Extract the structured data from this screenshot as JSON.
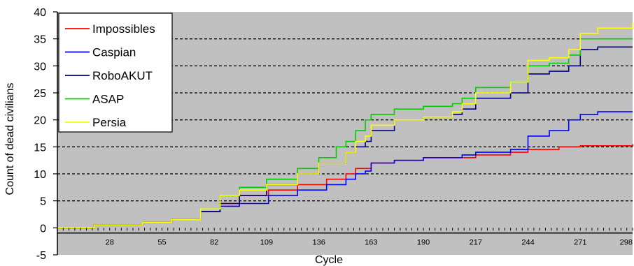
{
  "chart_data": {
    "type": "line",
    "title": "",
    "xlabel": "Cycle",
    "ylabel": "Count of dead civilians",
    "xlim": [
      1,
      298
    ],
    "ylim": [
      -5,
      40
    ],
    "x_ticks": [
      28,
      55,
      82,
      109,
      136,
      163,
      190,
      217,
      244,
      271,
      298
    ],
    "y_ticks": [
      -5,
      0,
      5,
      10,
      15,
      20,
      25,
      30,
      35,
      40
    ],
    "plot_background": "#c0c0c0",
    "grid": "horizontal dashed",
    "legend_position": "top-left",
    "series": [
      {
        "name": "Impossibles",
        "color": "#ff0000",
        "x": [
          1,
          20,
          45,
          60,
          75,
          85,
          95,
          110,
          125,
          140,
          150,
          155,
          160,
          163,
          175,
          190,
          210,
          217,
          235,
          244,
          260,
          271,
          298
        ],
        "y": [
          0,
          0.5,
          1,
          1.5,
          3,
          4.5,
          6,
          7,
          8,
          9,
          10,
          11,
          11,
          12,
          12.5,
          13,
          13,
          13.5,
          14,
          14.5,
          15,
          15.2,
          15.5
        ]
      },
      {
        "name": "Caspian",
        "color": "#0000ff",
        "x": [
          1,
          20,
          45,
          60,
          75,
          85,
          95,
          110,
          125,
          140,
          150,
          155,
          160,
          163,
          175,
          190,
          210,
          217,
          235,
          244,
          255,
          265,
          271,
          280,
          298
        ],
        "y": [
          0,
          0.5,
          1,
          1.5,
          3,
          4,
          4.5,
          6,
          7,
          8,
          9,
          10,
          10.5,
          12,
          12.5,
          13,
          13.5,
          14,
          14.5,
          17,
          18,
          20,
          21,
          21.5,
          21.5
        ]
      },
      {
        "name": "RoboAKUT",
        "color": "#000080",
        "x": [
          1,
          20,
          45,
          60,
          75,
          85,
          95,
          109,
          125,
          136,
          150,
          155,
          160,
          163,
          175,
          190,
          205,
          210,
          217,
          235,
          244,
          255,
          265,
          271,
          280,
          298
        ],
        "y": [
          0,
          0.5,
          1,
          1.5,
          3,
          4.5,
          6,
          8,
          10,
          12,
          14,
          15,
          16,
          18,
          20,
          20.5,
          21,
          22,
          24,
          25,
          28.5,
          29,
          30,
          33,
          33.5,
          33.5
        ]
      },
      {
        "name": "ASAP",
        "color": "#00cc00",
        "x": [
          1,
          20,
          45,
          60,
          75,
          85,
          95,
          109,
          125,
          136,
          145,
          150,
          155,
          160,
          163,
          175,
          190,
          205,
          210,
          217,
          235,
          244,
          255,
          265,
          271,
          298
        ],
        "y": [
          0,
          0.5,
          1,
          1.5,
          3.5,
          6,
          7.5,
          9,
          11,
          13,
          15,
          16,
          18,
          20,
          21,
          22,
          22.5,
          23,
          24,
          26,
          27,
          30,
          30.5,
          32,
          35,
          35
        ]
      },
      {
        "name": "Persia",
        "color": "#ffff00",
        "x": [
          1,
          20,
          45,
          60,
          75,
          85,
          95,
          109,
          125,
          136,
          150,
          155,
          160,
          163,
          175,
          190,
          205,
          210,
          217,
          235,
          244,
          255,
          265,
          271,
          280,
          298
        ],
        "y": [
          0,
          0.5,
          1,
          1.5,
          3.5,
          6,
          7,
          8,
          10,
          12,
          14,
          16,
          17,
          19,
          20,
          20.5,
          21.5,
          23,
          25,
          27,
          31,
          31.5,
          33,
          36,
          37,
          38
        ]
      }
    ]
  }
}
